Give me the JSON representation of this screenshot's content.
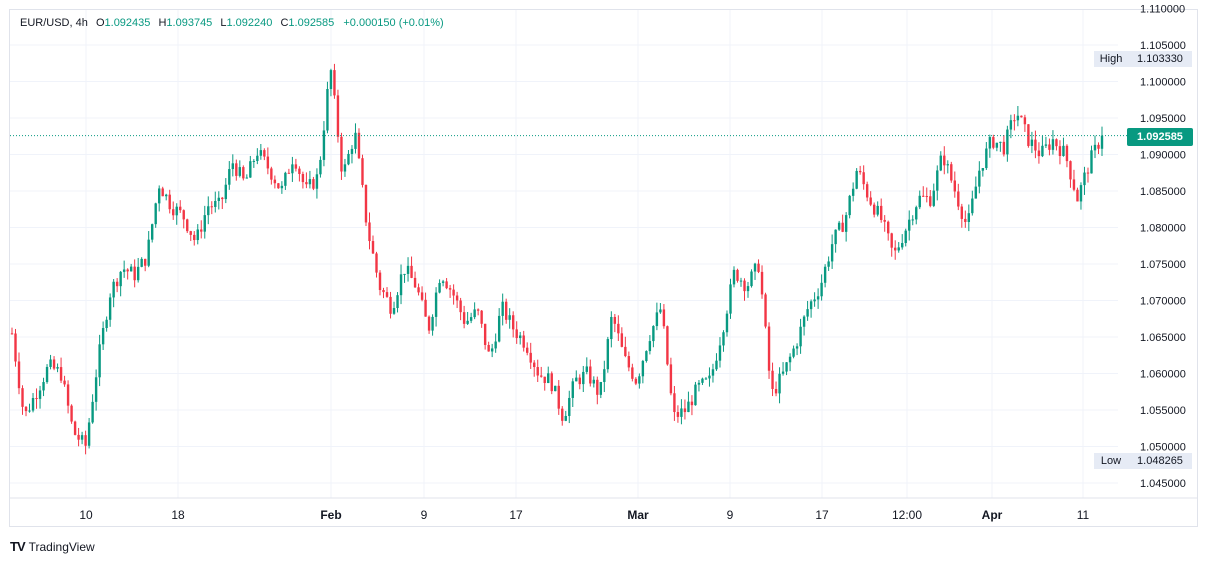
{
  "legend": {
    "symbol": "EUR/USD",
    "interval": "4h",
    "open_label": "O",
    "open": "1.092435",
    "high_label": "H",
    "high": "1.093745",
    "low_label": "L",
    "low": "1.092240",
    "close_label": "C",
    "close": "1.092585",
    "change": "+0.000150 (+0.01%)"
  },
  "high_marker": {
    "label": "High",
    "value": "1.103330"
  },
  "low_marker": {
    "label": "Low",
    "value": "1.048265"
  },
  "last_price": "1.092585",
  "brand": {
    "logo_text": "TV",
    "name": "TradingView"
  },
  "colors": {
    "up": "#089981",
    "down": "#f23645",
    "grid": "#f0f3fa",
    "price_line": "#089981"
  },
  "chart_data": {
    "type": "candlestick",
    "symbol": "EUR/USD",
    "interval": "4h",
    "y_axis": {
      "ticks": [
        "1.110000",
        "1.105000",
        "1.100000",
        "1.095000",
        "1.090000",
        "1.085000",
        "1.080000",
        "1.075000",
        "1.070000",
        "1.065000",
        "1.060000",
        "1.055000",
        "1.050000",
        "1.045000"
      ],
      "range": [
        1.0425,
        1.11
      ]
    },
    "x_axis": {
      "tick_labels": [
        "10",
        "18",
        "Feb",
        "9",
        "17",
        "Mar",
        "9",
        "17",
        "12:00",
        "Apr",
        "11"
      ]
    },
    "grid": true,
    "series_path": [
      [
        0,
        1.0655
      ],
      [
        1,
        1.054
      ],
      [
        2,
        1.0575
      ],
      [
        3,
        1.061
      ],
      [
        4,
        1.06
      ],
      [
        5,
        1.052
      ],
      [
        6,
        1.05
      ],
      [
        7,
        1.0615
      ],
      [
        8,
        1.071
      ],
      [
        9,
        1.0745
      ],
      [
        10,
        1.0735
      ],
      [
        11,
        1.076
      ],
      [
        12,
        1.086
      ],
      [
        13,
        1.083
      ],
      [
        14,
        1.0815
      ],
      [
        15,
        1.078
      ],
      [
        16,
        1.083
      ],
      [
        17,
        1.083
      ],
      [
        18,
        1.089
      ],
      [
        19,
        1.086
      ],
      [
        20,
        1.0905
      ],
      [
        21,
        1.088
      ],
      [
        22,
        1.085
      ],
      [
        23,
        1.09
      ],
      [
        24,
        1.085
      ],
      [
        25,
        1.087
      ],
      [
        26,
        1.102
      ],
      [
        27,
        1.087
      ],
      [
        28,
        1.093
      ],
      [
        29,
        1.08
      ],
      [
        30,
        1.072
      ],
      [
        31,
        1.069
      ],
      [
        32,
        1.0745
      ],
      [
        33,
        1.072
      ],
      [
        34,
        1.066
      ],
      [
        35,
        1.074
      ],
      [
        36,
        1.071
      ],
      [
        37,
        1.067
      ],
      [
        38,
        1.0685
      ],
      [
        39,
        1.062
      ],
      [
        40,
        1.069
      ],
      [
        41,
        1.066
      ],
      [
        42,
        1.064
      ],
      [
        43,
        1.06
      ],
      [
        44,
        1.059
      ],
      [
        45,
        1.054
      ],
      [
        46,
        1.059
      ],
      [
        47,
        1.06
      ],
      [
        48,
        1.057
      ],
      [
        49,
        1.068
      ],
      [
        50,
        1.062
      ],
      [
        51,
        1.059
      ],
      [
        52,
        1.065
      ],
      [
        53,
        1.069
      ],
      [
        54,
        1.054
      ],
      [
        55,
        1.055
      ],
      [
        56,
        1.058
      ],
      [
        57,
        1.059
      ],
      [
        58,
        1.066
      ],
      [
        59,
        1.074
      ],
      [
        60,
        1.072
      ],
      [
        61,
        1.075
      ],
      [
        62,
        1.057
      ],
      [
        63,
        1.06
      ],
      [
        64,
        1.064
      ],
      [
        65,
        1.069
      ],
      [
        66,
        1.072
      ],
      [
        67,
        1.078
      ],
      [
        68,
        1.081
      ],
      [
        69,
        1.088
      ],
      [
        70,
        1.084
      ],
      [
        71,
        1.081
      ],
      [
        72,
        1.076
      ],
      [
        73,
        1.08
      ],
      [
        74,
        1.084
      ],
      [
        75,
        1.084
      ],
      [
        76,
        1.09
      ],
      [
        77,
        1.085
      ],
      [
        78,
        1.08
      ],
      [
        79,
        1.088
      ],
      [
        80,
        1.092
      ],
      [
        81,
        1.091
      ],
      [
        82,
        1.096
      ],
      [
        83,
        1.092
      ],
      [
        84,
        1.09
      ],
      [
        85,
        1.092
      ],
      [
        86,
        1.09
      ],
      [
        87,
        1.084
      ],
      [
        88,
        1.089
      ],
      [
        89,
        1.0926
      ]
    ]
  }
}
